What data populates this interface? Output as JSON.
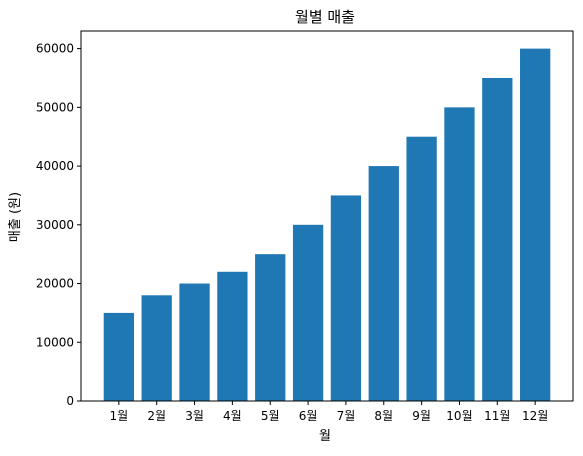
{
  "chart_data": {
    "type": "bar",
    "title": "월별 매출",
    "xlabel": "월",
    "ylabel": "매출 (원)",
    "categories": [
      "1월",
      "2월",
      "3월",
      "4월",
      "5월",
      "6월",
      "7월",
      "8월",
      "9월",
      "10월",
      "11월",
      "12월"
    ],
    "values": [
      15000,
      18000,
      20000,
      22000,
      25000,
      30000,
      35000,
      40000,
      45000,
      50000,
      55000,
      60000
    ],
    "ylim": [
      0,
      63000
    ],
    "yticks": [
      0,
      10000,
      20000,
      30000,
      40000,
      50000,
      60000
    ],
    "ytick_labels": [
      "0",
      "10000",
      "20000",
      "30000",
      "40000",
      "50000",
      "60000"
    ],
    "grid": false,
    "legend": "none",
    "bar_color": "#1f77b4"
  }
}
